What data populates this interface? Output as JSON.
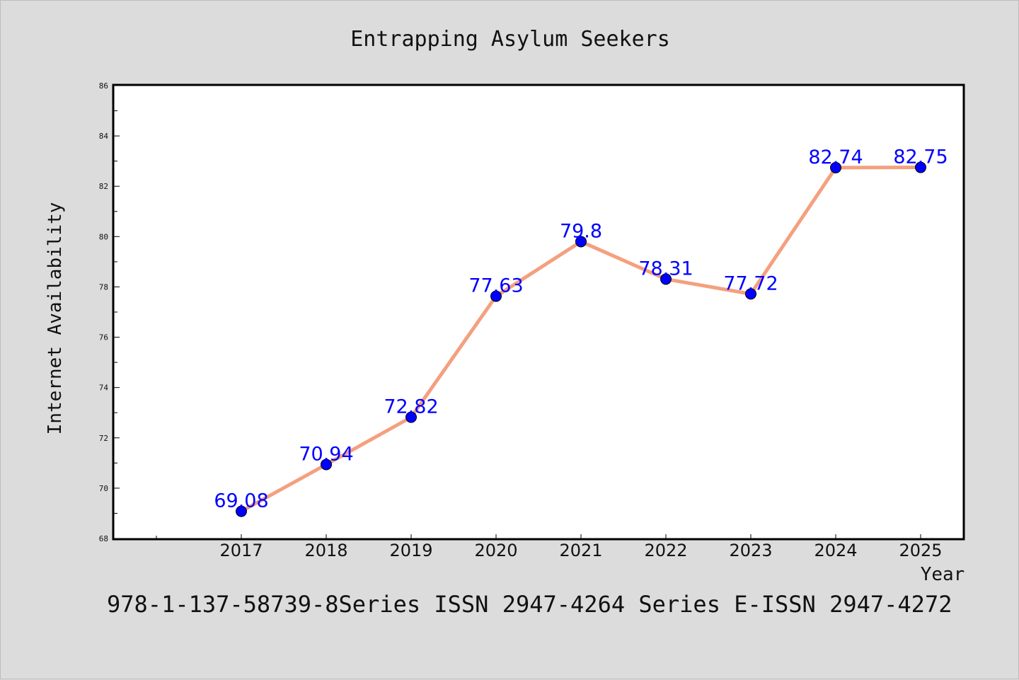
{
  "chart_data": {
    "type": "line",
    "title": "Entrapping Asylum Seekers",
    "xlabel": "Year",
    "ylabel": "Internet Availability",
    "categories": [
      "2017",
      "2018",
      "2019",
      "2020",
      "2021",
      "2022",
      "2023",
      "2024",
      "2025"
    ],
    "series": [
      {
        "values": [
          69.08,
          70.94,
          72.82,
          77.63,
          79.8,
          78.31,
          77.72,
          82.74,
          82.75
        ],
        "labels": [
          "69.08",
          "70.94",
          "72.82",
          "77.63",
          "79.8",
          "78.31",
          "77.72",
          "82.74",
          "82.75"
        ],
        "line_color": "#f4a07f",
        "marker_color": "#0000ff"
      }
    ],
    "ylim": [
      68,
      86
    ],
    "yticks": [
      "68",
      "70",
      "72",
      "74",
      "76",
      "78",
      "80",
      "82",
      "84",
      "86"
    ],
    "grid": false,
    "legend": "none"
  },
  "footer": {
    "text": "978-1-137-58739-8Series ISSN 2947-4264 Series E-ISSN 2947-4272"
  }
}
